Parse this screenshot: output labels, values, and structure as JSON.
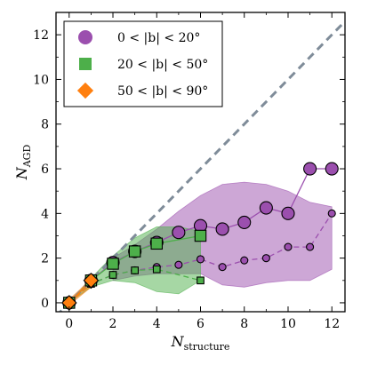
{
  "chart_data": {
    "type": "scatter",
    "xlabel": "N",
    "xlabel_sub": "structure",
    "ylabel": "N",
    "ylabel_sub": "AGD",
    "xlim": [
      -0.6,
      12.6
    ],
    "ylim": [
      -0.4,
      13.0
    ],
    "xticks": [
      0,
      2,
      4,
      6,
      8,
      10,
      12
    ],
    "yticks": [
      0,
      2,
      4,
      6,
      8,
      10,
      12
    ],
    "grid": false,
    "legend_position": "top-left",
    "one_to_one_line": {
      "x": [
        -0.6,
        12.6
      ],
      "y": [
        -0.6,
        12.6
      ],
      "color": "#7f8c99",
      "style": "dashed"
    },
    "series": [
      {
        "name": "0 < |b| < 20°",
        "marker": "circle",
        "color": "#9b4fae",
        "fill_color": "#9b4fae",
        "x": [
          0,
          1,
          2,
          3,
          4,
          5,
          6,
          7,
          8,
          9,
          10,
          11,
          12
        ],
        "y_upper": [
          0,
          1,
          1.8,
          2.3,
          2.7,
          3.15,
          3.45,
          3.3,
          3.6,
          4.25,
          4.0,
          6.0,
          6.0
        ],
        "y_lower": [
          0,
          0.85,
          1.25,
          1.45,
          1.6,
          1.7,
          1.95,
          1.6,
          1.9,
          2.0,
          2.5,
          2.5,
          4.0
        ],
        "band": {
          "x": [
            2,
            3,
            4,
            5,
            6,
            7,
            8,
            9,
            10,
            11,
            12
          ],
          "upper": [
            2.0,
            2.6,
            3.3,
            4.1,
            4.8,
            5.3,
            5.4,
            5.3,
            5.0,
            4.5,
            4.3
          ],
          "lower": [
            1.0,
            1.2,
            1.3,
            1.3,
            1.3,
            0.8,
            0.7,
            0.9,
            1.0,
            1.0,
            1.5
          ]
        }
      },
      {
        "name": "20 < |b| < 50°",
        "marker": "square",
        "color": "#4daf4a",
        "fill_color": "#4daf4a",
        "x": [
          0,
          1,
          2,
          3,
          4,
          6
        ],
        "y_upper": [
          0,
          1,
          1.75,
          2.3,
          2.65,
          3.0
        ],
        "y_lower": [
          0,
          0.85,
          1.25,
          1.45,
          1.5,
          1.0
        ],
        "band": {
          "x": [
            0,
            1,
            2,
            3,
            4,
            5,
            6
          ],
          "upper": [
            0,
            1.1,
            2.1,
            2.9,
            3.4,
            3.4,
            3.2
          ],
          "lower": [
            0,
            0.7,
            1.0,
            0.9,
            0.5,
            0.4,
            1.0
          ]
        }
      },
      {
        "name": "50 < |b| < 90°",
        "marker": "diamond",
        "color": "#ff7f0e",
        "fill_color": "#ff7f0e",
        "x": [
          0,
          1
        ],
        "y_upper": [
          0,
          1.0
        ],
        "y_lower": [
          0,
          0.85
        ],
        "band": {
          "x": [
            0,
            0.5,
            1
          ],
          "upper": [
            0.15,
            0.6,
            1.1
          ],
          "lower": [
            -0.1,
            0.3,
            0.7
          ]
        }
      }
    ]
  }
}
